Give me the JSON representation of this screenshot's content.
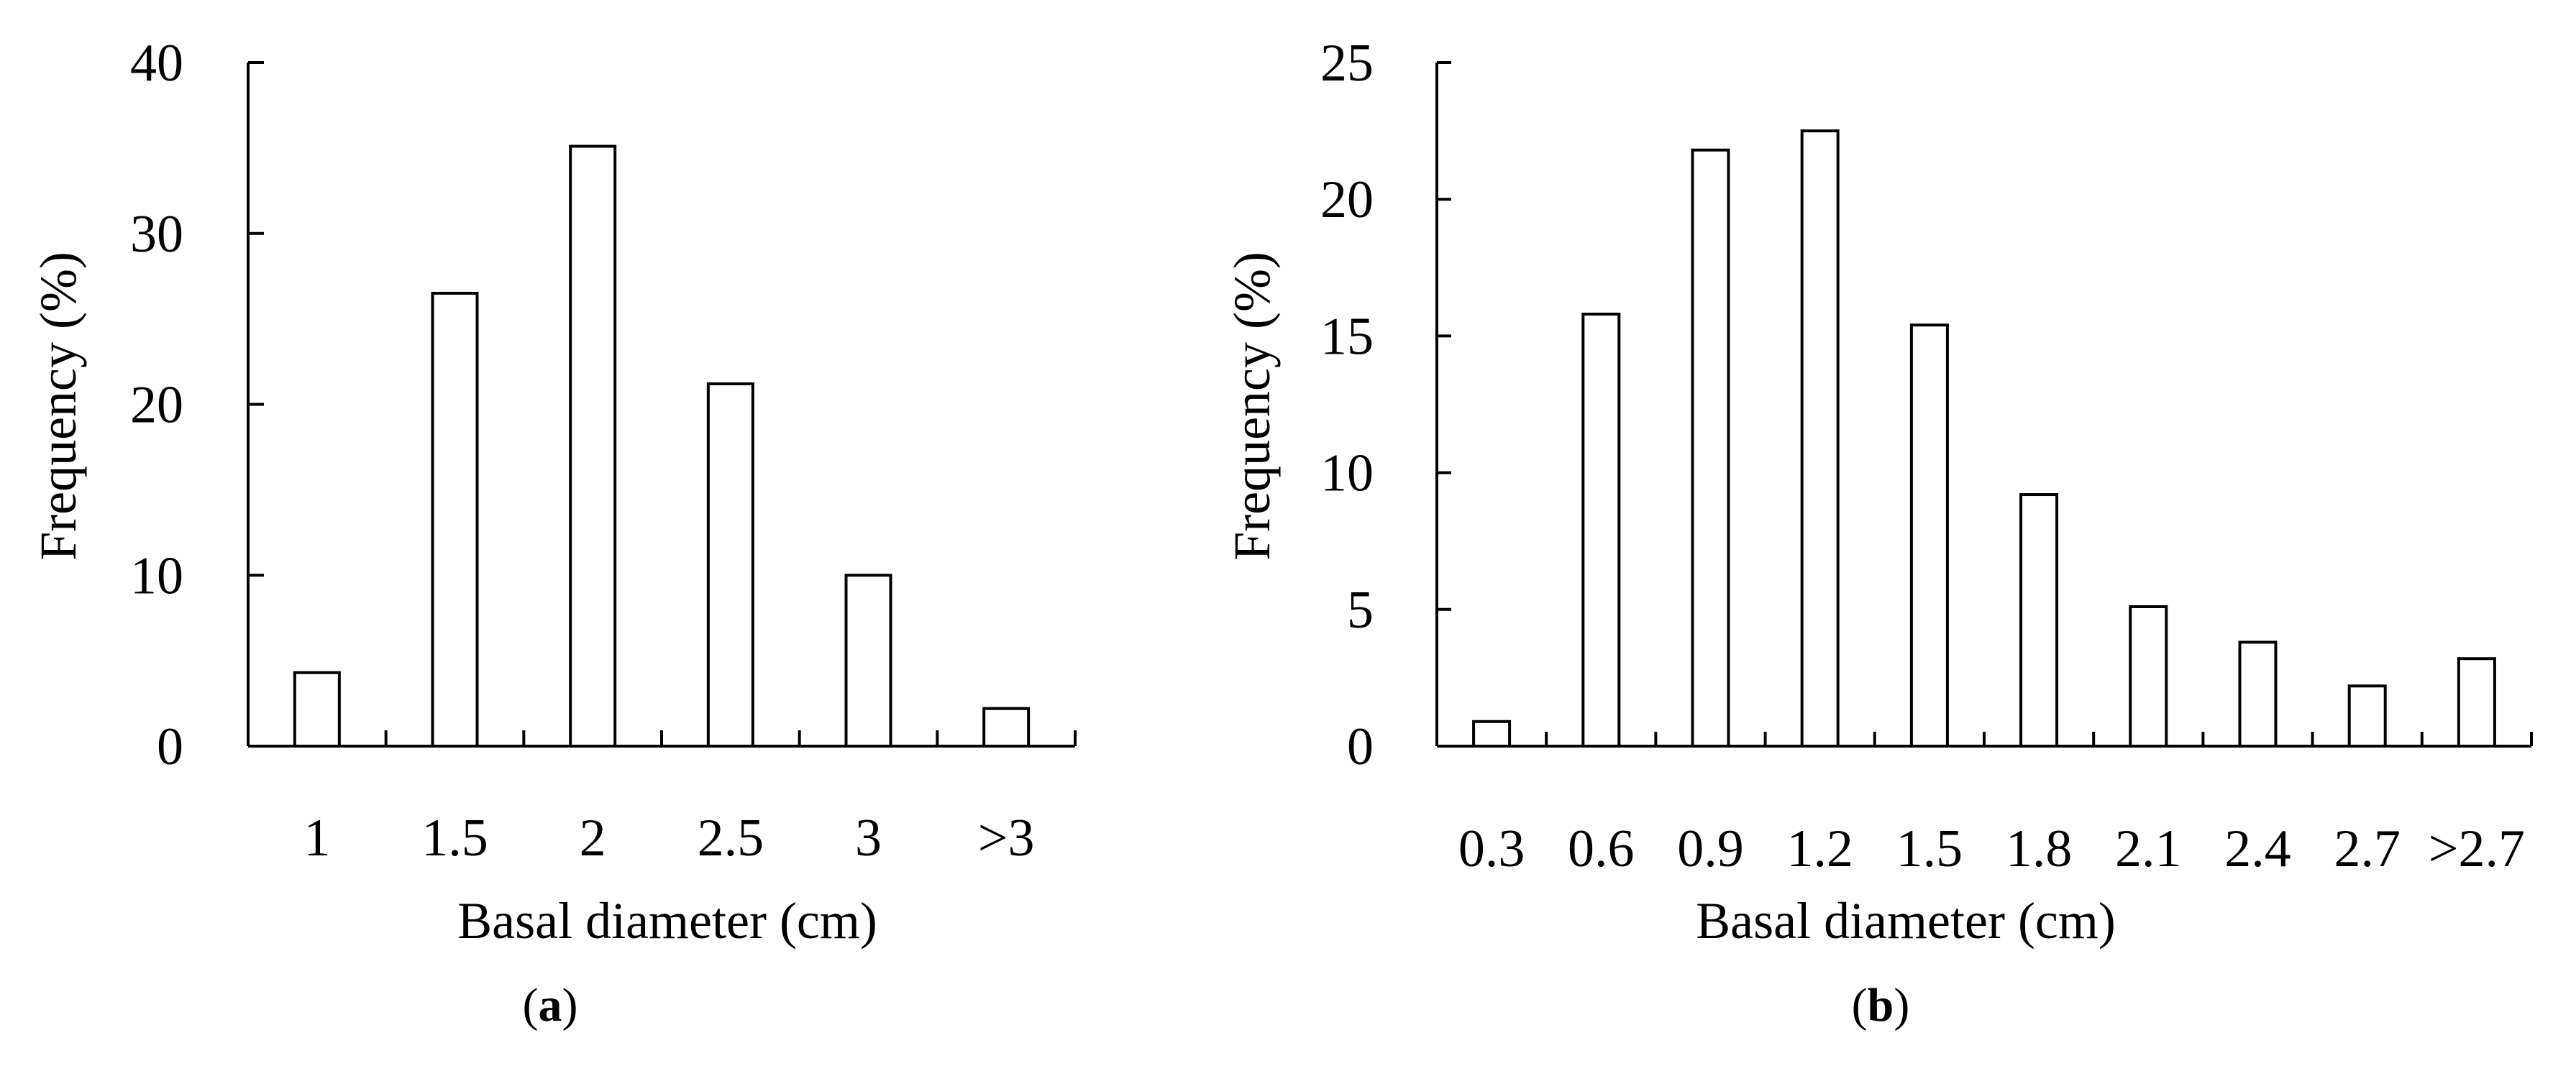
{
  "chart_data": [
    {
      "type": "bar",
      "panel_label": "a",
      "categories": [
        "1",
        "1.5",
        "2",
        "2.5",
        "3",
        ">3"
      ],
      "values": [
        4.3,
        26.5,
        35.1,
        21.2,
        10.0,
        2.2
      ],
      "xlabel": "Basal diameter (cm)",
      "ylabel": "Frequency (%)",
      "ylim": [
        0,
        40
      ],
      "yticks": [
        "0",
        "10",
        "20",
        "30",
        "40"
      ],
      "grid": false,
      "legend": "none"
    },
    {
      "type": "bar",
      "panel_label": "b",
      "categories": [
        "0.3",
        "0.6",
        "0.9",
        "1.2",
        "1.5",
        "1.8",
        "2.1",
        "2.4",
        "2.7",
        ">2.7"
      ],
      "values": [
        0.9,
        15.8,
        21.8,
        22.5,
        15.4,
        9.2,
        5.1,
        3.8,
        2.2,
        3.2
      ],
      "xlabel": "Basal diameter (cm)",
      "ylabel": "Frequency (%)",
      "ylim": [
        0,
        25
      ],
      "yticks": [
        "0",
        "5",
        "10",
        "15",
        "20",
        "25"
      ],
      "grid": false,
      "legend": "none"
    }
  ]
}
